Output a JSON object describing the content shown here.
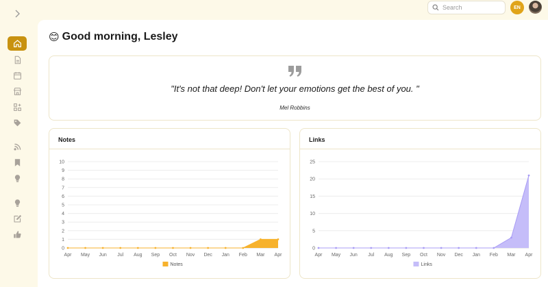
{
  "header": {
    "search": {
      "placeholder": "Search",
      "value": ""
    },
    "user_initials": "EN"
  },
  "sidebar": {
    "items": [
      {
        "id": "home",
        "icon": "home-icon",
        "active": true
      },
      {
        "id": "notes",
        "icon": "document-icon",
        "active": false
      },
      {
        "id": "calendar",
        "icon": "calendar-icon",
        "active": false
      },
      {
        "id": "store",
        "icon": "store-icon",
        "active": false
      },
      {
        "id": "widgets",
        "icon": "grid-plus-icon",
        "active": false
      },
      {
        "id": "tags",
        "icon": "tag-icon",
        "active": false
      },
      {
        "id": "feeds",
        "icon": "rss-icon",
        "active": false
      },
      {
        "id": "bookmarks",
        "icon": "bookmark-icon",
        "active": false
      },
      {
        "id": "ideas",
        "icon": "lightbulb-icon",
        "active": false
      },
      {
        "id": "insights",
        "icon": "lightbulb-icon",
        "active": false
      },
      {
        "id": "write",
        "icon": "edit-icon",
        "active": false
      },
      {
        "id": "feedback",
        "icon": "thumbs-up-icon",
        "active": false
      }
    ]
  },
  "greeting": {
    "emoji": "😊",
    "text": "Good morning, Lesley"
  },
  "quote": {
    "text": "\"It's not that deep! Don't let your emotions get the best of you. \"",
    "author": "Mel Robbins"
  },
  "colors": {
    "accent": "#c89210",
    "notes": "#f7b22d",
    "links": "#c5bdf9",
    "links_stroke": "#a89cf5"
  },
  "chart_data": [
    {
      "type": "area",
      "title": "Notes",
      "categories": [
        "Apr",
        "May",
        "Jun",
        "Jul",
        "Aug",
        "Sep",
        "Oct",
        "Nov",
        "Dec",
        "Jan",
        "Feb",
        "Mar",
        "Apr"
      ],
      "series": [
        {
          "name": "Notes",
          "values": [
            0,
            0,
            0,
            0,
            0,
            0,
            0,
            0,
            0,
            0,
            0,
            1,
            1
          ]
        }
      ],
      "ylim": [
        0,
        10
      ],
      "yticks": [
        0,
        1,
        2,
        3,
        4,
        5,
        6,
        7,
        8,
        9,
        10
      ],
      "grid": true,
      "legend": "bottom"
    },
    {
      "type": "area",
      "title": "Links",
      "categories": [
        "Apr",
        "May",
        "Jun",
        "Jul",
        "Aug",
        "Sep",
        "Oct",
        "Nov",
        "Dec",
        "Jan",
        "Feb",
        "Mar",
        "Apr"
      ],
      "series": [
        {
          "name": "Links",
          "values": [
            0,
            0,
            0,
            0,
            0,
            0,
            0,
            0,
            0,
            0,
            0,
            3,
            21
          ]
        }
      ],
      "ylim": [
        0,
        25
      ],
      "yticks": [
        0,
        5,
        10,
        15,
        20,
        25
      ],
      "grid": true,
      "legend": "bottom"
    }
  ]
}
